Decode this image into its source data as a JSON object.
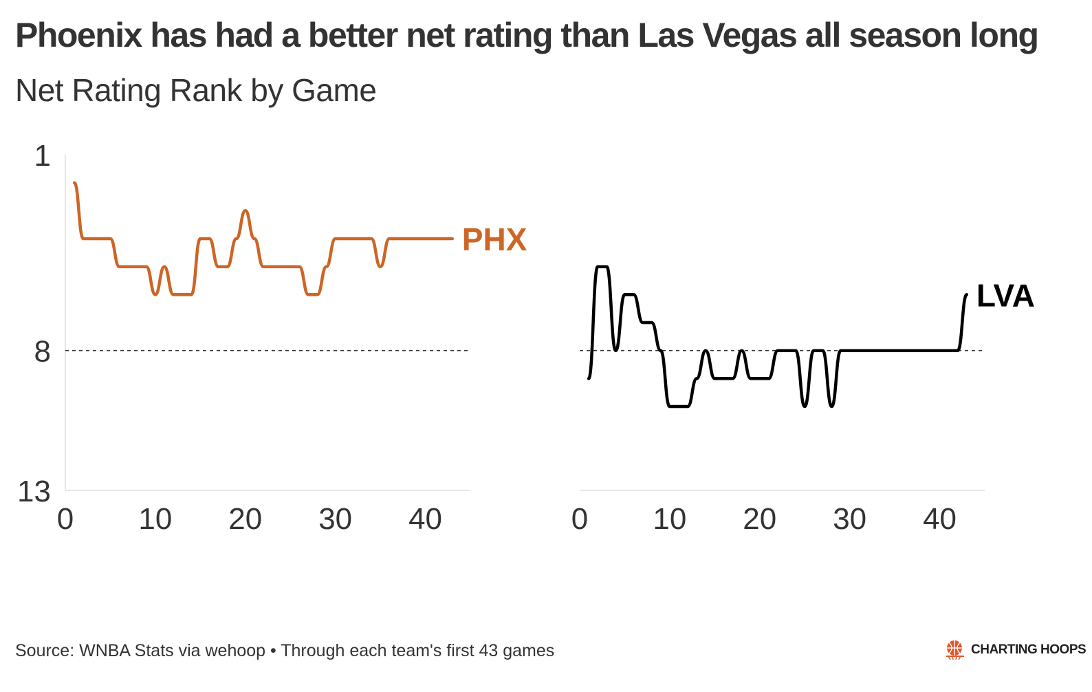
{
  "title": "Phoenix has had a better net rating than Las Vegas all season long",
  "subtitle": "Net Rating Rank by Game",
  "caption": "Source: WNBA Stats via wehoop • Through each team's first 43 games",
  "brand": {
    "label": "CHARTING HOOPS",
    "icon": "basketball-icon",
    "color": "#e4572e"
  },
  "chart_data": [
    {
      "type": "line",
      "series": [
        {
          "name": "PHX",
          "color": "#cd6525",
          "x": [
            1,
            2,
            3,
            4,
            5,
            6,
            7,
            8,
            9,
            10,
            11,
            12,
            13,
            14,
            15,
            16,
            17,
            18,
            19,
            20,
            21,
            22,
            23,
            24,
            25,
            26,
            27,
            28,
            29,
            30,
            31,
            32,
            33,
            34,
            35,
            36,
            37,
            38,
            39,
            40,
            41,
            42,
            43
          ],
          "y": [
            2,
            4,
            4,
            4,
            4,
            5,
            5,
            5,
            5,
            6,
            5,
            6,
            6,
            6,
            4,
            4,
            5,
            5,
            4,
            3,
            4,
            5,
            5,
            5,
            5,
            5,
            6,
            6,
            5,
            4,
            4,
            4,
            4,
            4,
            5,
            4,
            4,
            4,
            4,
            4,
            4,
            4,
            4
          ]
        }
      ],
      "xlim": [
        0,
        45
      ],
      "ylim": [
        13,
        1
      ],
      "xticks": [
        0,
        10,
        20,
        30,
        40
      ],
      "xtick_labels": [
        "0",
        "10",
        "20",
        "30",
        "40"
      ],
      "yticks": [
        1,
        8,
        13
      ],
      "ytick_labels": [
        "1",
        "8",
        "13"
      ],
      "reference_line": {
        "y": 8,
        "style": "dashed"
      },
      "grid": false,
      "end_label": "PHX"
    },
    {
      "type": "line",
      "series": [
        {
          "name": "LVA",
          "color": "#000000",
          "x": [
            1,
            2,
            3,
            4,
            5,
            6,
            7,
            8,
            9,
            10,
            11,
            12,
            13,
            14,
            15,
            16,
            17,
            18,
            19,
            20,
            21,
            22,
            23,
            24,
            25,
            26,
            27,
            28,
            29,
            30,
            31,
            32,
            33,
            34,
            35,
            36,
            37,
            38,
            39,
            40,
            41,
            42,
            43
          ],
          "y": [
            9,
            5,
            5,
            8,
            6,
            6,
            7,
            7,
            8,
            10,
            10,
            10,
            9,
            8,
            9,
            9,
            9,
            8,
            9,
            9,
            9,
            8,
            8,
            8,
            10,
            8,
            8,
            10,
            8,
            8,
            8,
            8,
            8,
            8,
            8,
            8,
            8,
            8,
            8,
            8,
            8,
            8,
            6
          ]
        }
      ],
      "xlim": [
        0,
        45
      ],
      "ylim": [
        13,
        1
      ],
      "xticks": [
        0,
        10,
        20,
        30,
        40
      ],
      "xtick_labels": [
        "0",
        "10",
        "20",
        "30",
        "40"
      ],
      "reference_line": {
        "y": 8,
        "style": "dashed"
      },
      "grid": false,
      "end_label": "LVA"
    }
  ]
}
